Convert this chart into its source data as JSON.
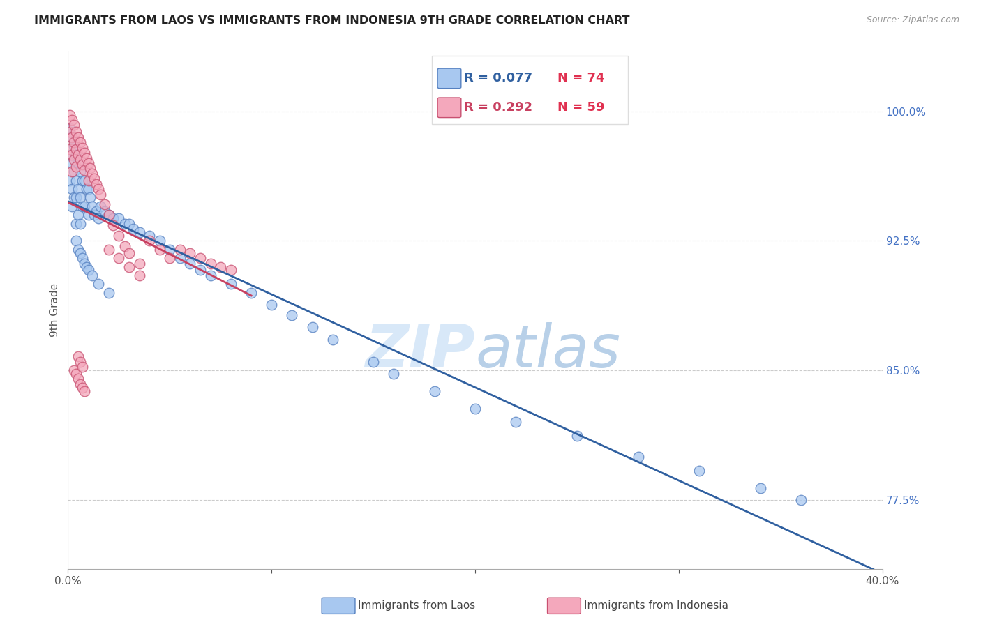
{
  "title": "IMMIGRANTS FROM LAOS VS IMMIGRANTS FROM INDONESIA 9TH GRADE CORRELATION CHART",
  "source_text": "Source: ZipAtlas.com",
  "ylabel_left": "9th Grade",
  "xlabel_laos": "Immigrants from Laos",
  "xlabel_indonesia": "Immigrants from Indonesia",
  "x_min": 0.0,
  "x_max": 0.4,
  "y_min": 0.735,
  "y_max": 1.035,
  "right_yticks": [
    0.775,
    0.85,
    0.925,
    1.0
  ],
  "right_ytick_labels": [
    "77.5%",
    "85.0%",
    "92.5%",
    "100.0%"
  ],
  "color_laos_fill": "#A8C8F0",
  "color_laos_edge": "#5580C0",
  "color_indonesia_fill": "#F4A8BC",
  "color_indonesia_edge": "#C85070",
  "color_line_laos": "#3060A0",
  "color_line_indonesia": "#C84060",
  "color_right_ticks": "#4472C4",
  "color_grid": "#CCCCCC",
  "watermark_color": "#D8E8F8",
  "laos_x": [
    0.001,
    0.001,
    0.001,
    0.002,
    0.002,
    0.002,
    0.002,
    0.003,
    0.003,
    0.003,
    0.004,
    0.004,
    0.004,
    0.004,
    0.005,
    0.005,
    0.005,
    0.006,
    0.006,
    0.006,
    0.007,
    0.007,
    0.008,
    0.008,
    0.009,
    0.01,
    0.01,
    0.011,
    0.012,
    0.013,
    0.014,
    0.015,
    0.016,
    0.018,
    0.02,
    0.022,
    0.025,
    0.028,
    0.03,
    0.032,
    0.035,
    0.04,
    0.045,
    0.05,
    0.055,
    0.06,
    0.065,
    0.07,
    0.08,
    0.09,
    0.1,
    0.11,
    0.12,
    0.13,
    0.15,
    0.16,
    0.18,
    0.2,
    0.22,
    0.25,
    0.28,
    0.31,
    0.34,
    0.36,
    0.004,
    0.005,
    0.006,
    0.007,
    0.008,
    0.009,
    0.01,
    0.012,
    0.015,
    0.02
  ],
  "laos_y": [
    0.99,
    0.975,
    0.96,
    0.985,
    0.97,
    0.955,
    0.945,
    0.98,
    0.965,
    0.95,
    0.975,
    0.96,
    0.95,
    0.935,
    0.97,
    0.955,
    0.94,
    0.965,
    0.95,
    0.935,
    0.96,
    0.945,
    0.96,
    0.945,
    0.955,
    0.955,
    0.94,
    0.95,
    0.945,
    0.94,
    0.942,
    0.938,
    0.945,
    0.942,
    0.94,
    0.938,
    0.938,
    0.935,
    0.935,
    0.932,
    0.93,
    0.928,
    0.925,
    0.92,
    0.915,
    0.912,
    0.908,
    0.905,
    0.9,
    0.895,
    0.888,
    0.882,
    0.875,
    0.868,
    0.855,
    0.848,
    0.838,
    0.828,
    0.82,
    0.812,
    0.8,
    0.792,
    0.782,
    0.775,
    0.925,
    0.92,
    0.918,
    0.915,
    0.912,
    0.91,
    0.908,
    0.905,
    0.9,
    0.895
  ],
  "indonesia_x": [
    0.001,
    0.001,
    0.001,
    0.002,
    0.002,
    0.002,
    0.002,
    0.003,
    0.003,
    0.003,
    0.004,
    0.004,
    0.004,
    0.005,
    0.005,
    0.006,
    0.006,
    0.007,
    0.007,
    0.008,
    0.008,
    0.009,
    0.01,
    0.01,
    0.011,
    0.012,
    0.013,
    0.014,
    0.015,
    0.016,
    0.018,
    0.02,
    0.022,
    0.025,
    0.028,
    0.03,
    0.035,
    0.04,
    0.045,
    0.05,
    0.055,
    0.06,
    0.065,
    0.07,
    0.075,
    0.08,
    0.003,
    0.004,
    0.005,
    0.006,
    0.007,
    0.008,
    0.02,
    0.025,
    0.03,
    0.035,
    0.005,
    0.006,
    0.007
  ],
  "indonesia_y": [
    0.998,
    0.988,
    0.978,
    0.995,
    0.985,
    0.975,
    0.965,
    0.992,
    0.982,
    0.972,
    0.988,
    0.978,
    0.968,
    0.985,
    0.975,
    0.982,
    0.972,
    0.979,
    0.969,
    0.976,
    0.966,
    0.973,
    0.97,
    0.96,
    0.967,
    0.964,
    0.961,
    0.958,
    0.955,
    0.952,
    0.946,
    0.94,
    0.934,
    0.928,
    0.922,
    0.918,
    0.912,
    0.925,
    0.92,
    0.915,
    0.92,
    0.918,
    0.915,
    0.912,
    0.91,
    0.908,
    0.85,
    0.848,
    0.845,
    0.842,
    0.84,
    0.838,
    0.92,
    0.915,
    0.91,
    0.905,
    0.858,
    0.855,
    0.852
  ]
}
